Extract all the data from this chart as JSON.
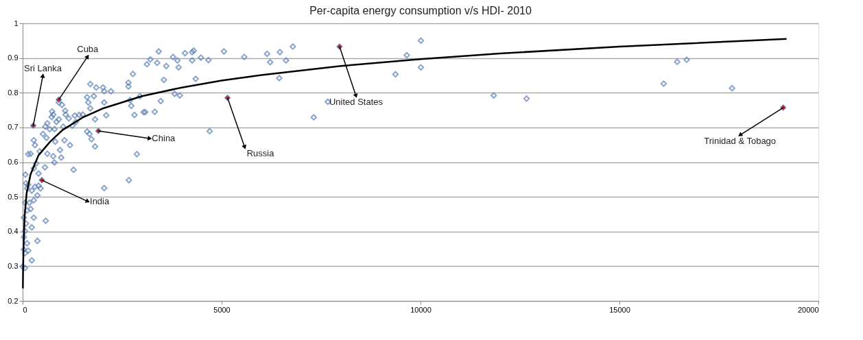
{
  "chart_data": {
    "type": "scatter",
    "title": "Per-capita energy consumption v/s HDI- 2010",
    "xlim": [
      0,
      20000
    ],
    "xticks": [
      0,
      5000,
      10000,
      15000,
      20000
    ],
    "ylim": [
      0.2,
      1
    ],
    "yticks": [
      0.2,
      0.3,
      0.4,
      0.5,
      0.6,
      0.7,
      0.8,
      0.9,
      1
    ],
    "grid": "y",
    "marker": "diamond",
    "series": [
      {
        "color": "#5a7fb5",
        "x": [
          3420,
          3210,
          3125,
          3380,
          3610,
          3780,
          3890,
          3920,
          4080,
          4260,
          4300,
          4260,
          4480,
          4670,
          4350,
          3550,
          5060,
          2770,
          2660,
          2660,
          2700,
          2730,
          2810,
          2950,
          3040,
          3080,
          3320,
          3470,
          3820,
          3950,
          4700,
          1700,
          1850,
          2020,
          2050,
          2220,
          1620,
          1650,
          1790,
          1700,
          1820,
          2050,
          2100,
          1620,
          1680,
          1730,
          1820,
          2870,
          1280,
          2050,
          2670,
          580,
          370,
          230,
          740,
          770,
          730,
          910,
          990,
          1070,
          1080,
          1160,
          1310,
          1420,
          1510,
          1340,
          1250,
          1020,
          910,
          850,
          620,
          570,
          680,
          800,
          510,
          600,
          280,
          310,
          430,
          200,
          140,
          340,
          280,
          560,
          820,
          1050,
          1190,
          940,
          770,
          620,
          800,
          970,
          400,
          70,
          85,
          140,
          110,
          230,
          310,
          400,
          450,
          370,
          280,
          170,
          60,
          110,
          200,
          280,
          230,
          85,
          30,
          60,
          30,
          110,
          140,
          60,
          30,
          0,
          60,
          5570,
          6145,
          6220,
          6465,
          6620,
          6790,
          6450,
          7670,
          7315,
          9655,
          10010,
          10010,
          9370,
          11840,
          12665,
          16110,
          16450,
          16690,
          17830
        ],
        "values": [
          0.919,
          0.896,
          0.882,
          0.886,
          0.877,
          0.903,
          0.893,
          0.873,
          0.914,
          0.917,
          0.921,
          0.893,
          0.901,
          0.894,
          0.84,
          0.837,
          0.919,
          0.854,
          0.829,
          0.818,
          0.779,
          0.762,
          0.736,
          0.79,
          0.744,
          0.744,
          0.745,
          0.776,
          0.797,
          0.792,
          0.689,
          0.825,
          0.815,
          0.815,
          0.804,
          0.804,
          0.787,
          0.772,
          0.79,
          0.755,
          0.723,
          0.772,
          0.735,
          0.688,
          0.681,
          0.666,
          0.645,
          0.623,
          0.578,
          0.525,
          0.548,
          0.431,
          0.373,
          0.317,
          0.746,
          0.737,
          0.73,
          0.772,
          0.765,
          0.748,
          0.737,
          0.726,
          0.734,
          0.736,
          0.737,
          0.716,
          0.705,
          0.702,
          0.723,
          0.716,
          0.712,
          0.702,
          0.695,
          0.695,
          0.681,
          0.67,
          0.663,
          0.649,
          0.631,
          0.624,
          0.623,
          0.596,
          0.582,
          0.585,
          0.659,
          0.663,
          0.649,
          0.635,
          0.617,
          0.624,
          0.599,
          0.613,
          0.567,
          0.564,
          0.539,
          0.535,
          0.524,
          0.518,
          0.529,
          0.532,
          0.524,
          0.504,
          0.49,
          0.483,
          0.483,
          0.461,
          0.465,
          0.44,
          0.412,
          0.423,
          0.44,
          0.401,
          0.384,
          0.366,
          0.345,
          0.338,
          0.348,
          0.299,
          0.295,
          0.903,
          0.912,
          0.888,
          0.917,
          0.893,
          0.933,
          0.842,
          0.774,
          0.729,
          0.908,
          0.95,
          0.873,
          0.853,
          0.792,
          0.783,
          0.826,
          0.889,
          0.895,
          0.813
        ]
      },
      {
        "color": "#ff0000",
        "x": [
          267,
          910,
          483,
          1903,
          5150,
          7965,
          19115
        ],
        "values": [
          0.705,
          0.78,
          0.548,
          0.69,
          0.785,
          0.933,
          0.757
        ]
      },
      {
        "type": "line",
        "color": "#000000",
        "marker": "none",
        "x": [
          6,
          10,
          20,
          50,
          100,
          200,
          400,
          700,
          1000,
          1500,
          2000,
          3000,
          4000,
          5000,
          6000,
          8000,
          10000,
          12000,
          15000,
          19200
        ],
        "values": [
          0.236,
          0.282,
          0.344,
          0.445,
          0.51,
          0.565,
          0.62,
          0.66,
          0.692,
          0.728,
          0.754,
          0.79,
          0.815,
          0.835,
          0.851,
          0.877,
          0.897,
          0.913,
          0.933,
          0.955
        ]
      }
    ],
    "annotations": [
      {
        "text": "Sri Lanka",
        "x": 267,
        "y": 0.705
      },
      {
        "text": "Cuba",
        "x": 910,
        "y": 0.78
      },
      {
        "text": "India",
        "x": 483,
        "y": 0.548
      },
      {
        "text": "China",
        "x": 1903,
        "y": 0.69
      },
      {
        "text": "Russia",
        "x": 5150,
        "y": 0.785
      },
      {
        "text": "United States",
        "x": 7965,
        "y": 0.933
      },
      {
        "text": "Trinidad & Tobago",
        "x": 19115,
        "y": 0.757
      }
    ]
  }
}
